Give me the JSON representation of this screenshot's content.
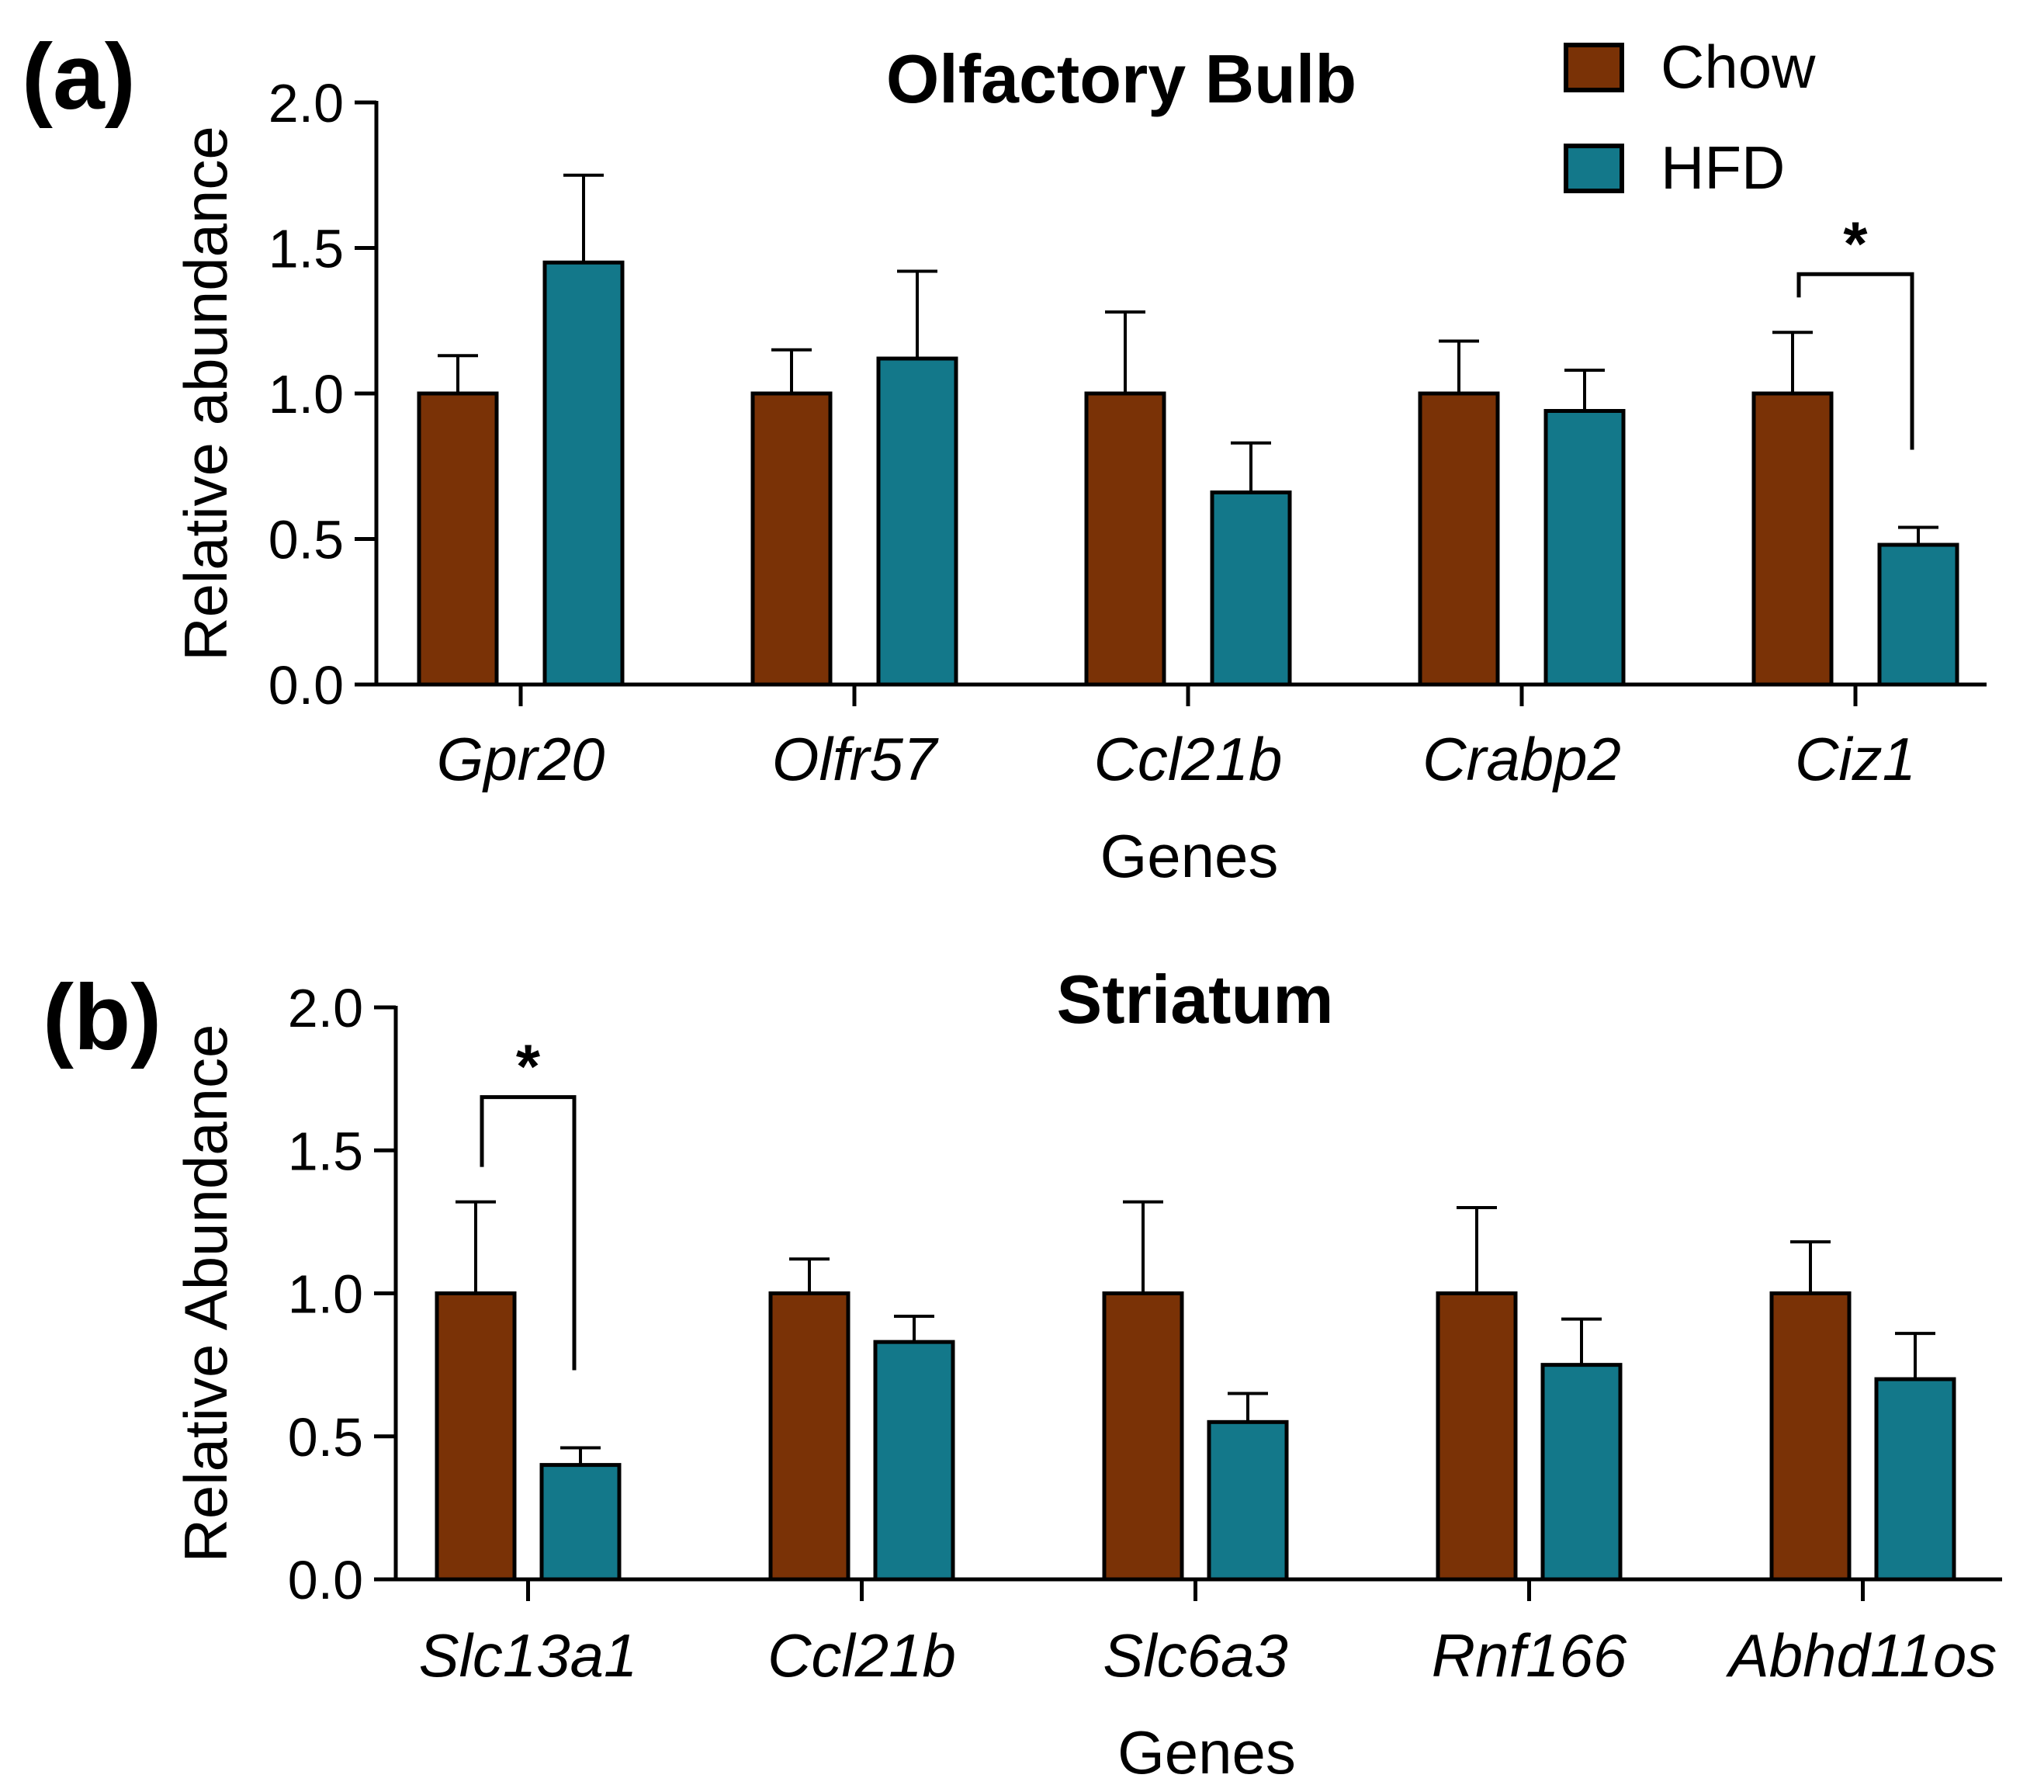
{
  "legend": {
    "items": [
      {
        "label": "Chow",
        "color": "#7a3206"
      },
      {
        "label": "HFD",
        "color": "#13788a"
      }
    ]
  },
  "colors": {
    "chow": "#7a3206",
    "hfd": "#13788a",
    "axis": "#000000"
  },
  "chart_data": [
    {
      "panel_label": "(a)",
      "type": "bar",
      "title": "Olfactory Bulb",
      "xlabel": "Genes",
      "ylabel": "Relative abundance",
      "ylim": [
        0,
        2.0
      ],
      "yticks": [
        "0.0",
        "0.5",
        "1.0",
        "1.5",
        "2.0"
      ],
      "categories": [
        "Gpr20",
        "Olfr57",
        "Ccl21b",
        "Crabp2",
        "Ciz1"
      ],
      "series": [
        {
          "name": "Chow",
          "values": [
            1.0,
            1.0,
            1.0,
            1.0,
            1.0
          ],
          "errors": [
            0.13,
            0.15,
            0.28,
            0.18,
            0.21
          ]
        },
        {
          "name": "HFD",
          "values": [
            1.45,
            1.12,
            0.66,
            0.94,
            0.48
          ],
          "errors": [
            0.3,
            0.3,
            0.17,
            0.14,
            0.06
          ]
        }
      ],
      "significance": [
        {
          "category": "Ciz1",
          "label": "*"
        }
      ]
    },
    {
      "panel_label": "(b)",
      "type": "bar",
      "title": "Striatum",
      "xlabel": "Genes",
      "ylabel": "Relative Abundance",
      "ylim": [
        0,
        2.0
      ],
      "yticks": [
        "0.0",
        "0.5",
        "1.0",
        "1.5",
        "2.0"
      ],
      "categories": [
        "Slc13a1",
        "Ccl21b",
        "Slc6a3",
        "Rnf166",
        "Abhd11os"
      ],
      "series": [
        {
          "name": "Chow",
          "values": [
            1.0,
            1.0,
            1.0,
            1.0,
            1.0
          ],
          "errors": [
            0.32,
            0.12,
            0.32,
            0.3,
            0.18
          ]
        },
        {
          "name": "HFD",
          "values": [
            0.4,
            0.83,
            0.55,
            0.75,
            0.7
          ],
          "errors": [
            0.06,
            0.09,
            0.1,
            0.16,
            0.16
          ]
        }
      ],
      "significance": [
        {
          "category": "Slc13a1",
          "label": "*"
        }
      ]
    }
  ]
}
